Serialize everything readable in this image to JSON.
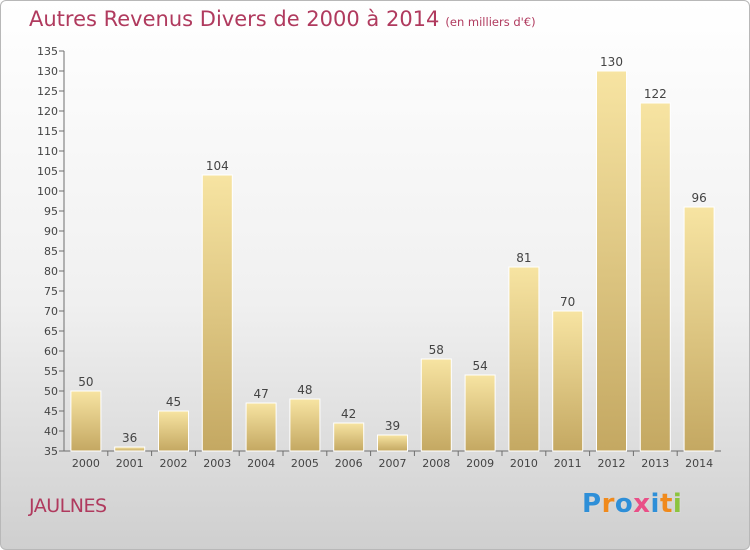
{
  "title": "Autres Revenus Divers de 2000 à 2014",
  "subtitle": "(en milliers d'€)",
  "commune": "JAULNES",
  "logo": {
    "letters": [
      "P",
      "r",
      "o",
      "x",
      "i",
      "t",
      "i"
    ],
    "colors": [
      "#2e8fd8",
      "#f08a1c",
      "#2e8fd8",
      "#e94f87",
      "#2e8fd8",
      "#f08a1c",
      "#8cc43e"
    ]
  },
  "colors": {
    "title": "#b03a5e",
    "bar_light": "#f7e4a2",
    "bar_dark": "#c4a862"
  },
  "chart_data": {
    "type": "bar",
    "categories": [
      "2000",
      "2001",
      "2002",
      "2003",
      "2004",
      "2005",
      "2006",
      "2007",
      "2008",
      "2009",
      "2010",
      "2011",
      "2012",
      "2013",
      "2014"
    ],
    "values": [
      50,
      36,
      45,
      104,
      47,
      48,
      42,
      39,
      58,
      54,
      81,
      70,
      130,
      122,
      96
    ],
    "ylim": [
      35,
      135
    ],
    "yticks": [
      35,
      40,
      45,
      50,
      55,
      60,
      65,
      70,
      75,
      80,
      85,
      90,
      95,
      100,
      105,
      110,
      115,
      120,
      125,
      130,
      135
    ],
    "grid": false
  }
}
